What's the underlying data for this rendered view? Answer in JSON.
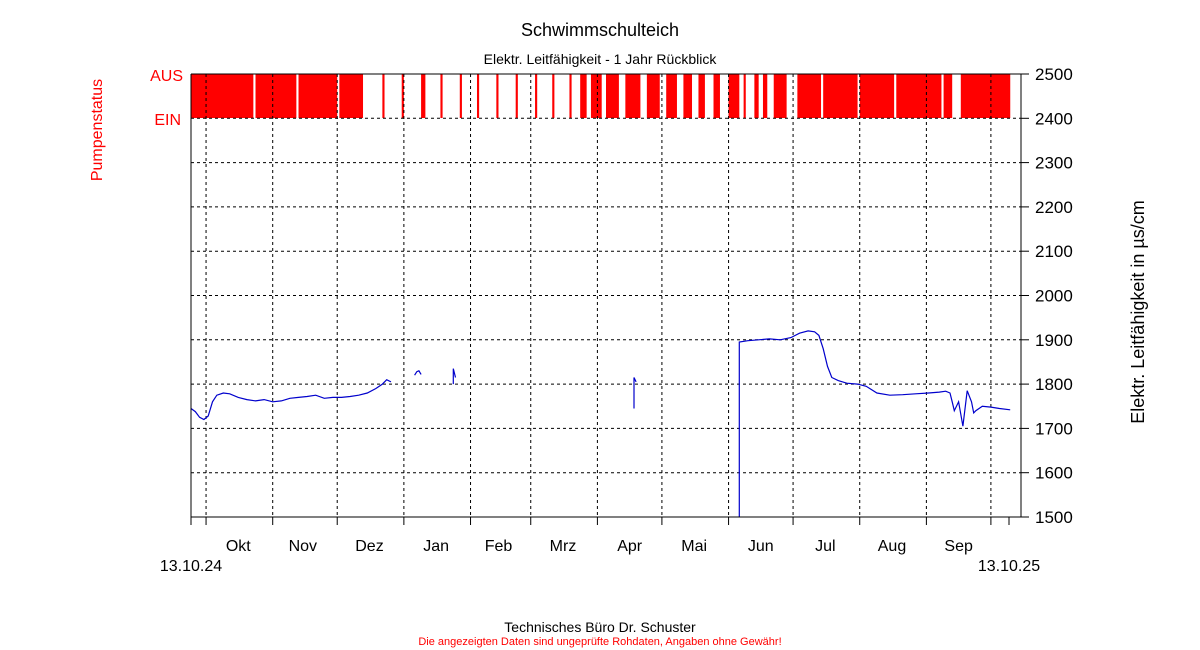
{
  "title": "Schwimmschulteich",
  "subtitle": "Elektr. Leitfähigkeit - 1 Jahr Rückblick",
  "footer": {
    "company": "Technisches Büro Dr. Schuster",
    "disclaimer": "Die angezeigten Daten sind ungeprüfte Rohdaten, Angaben ohne Gewähr!"
  },
  "colors": {
    "pump": "#ff0000",
    "series": "#0000cc",
    "grid": "#000000",
    "text": "#000000",
    "pump_label": "#ff0000"
  },
  "chart_data": {
    "type": "line",
    "ylabel_left": "Pumpenstatus",
    "ylabel_right": "Elektr. Leitfähigkeit in µs/cm",
    "pump_levels": [
      "AUS",
      "EIN"
    ],
    "ylim": [
      1500,
      2500
    ],
    "yticks": [
      1500,
      1600,
      1700,
      1800,
      1900,
      2000,
      2100,
      2200,
      2300,
      2400,
      2500
    ],
    "xlim": [
      "2024-09-24",
      "2025-10-15"
    ],
    "month_ticks": [
      "2024-10-01",
      "2024-11-01",
      "2024-12-01",
      "2025-01-01",
      "2025-02-01",
      "2025-03-01",
      "2025-04-01",
      "2025-05-01",
      "2025-06-01",
      "2025-07-01",
      "2025-08-01",
      "2025-09-01",
      "2025-10-01"
    ],
    "month_labels": [
      {
        "label": "Okt",
        "date": "2024-10-16"
      },
      {
        "label": "Nov",
        "date": "2024-11-15"
      },
      {
        "label": "Dez",
        "date": "2024-12-16"
      },
      {
        "label": "Jan",
        "date": "2025-01-16"
      },
      {
        "label": "Feb",
        "date": "2025-02-14"
      },
      {
        "label": "Mrz",
        "date": "2025-03-16"
      },
      {
        "label": "Apr",
        "date": "2025-04-16"
      },
      {
        "label": "Mai",
        "date": "2025-05-16"
      },
      {
        "label": "Jun",
        "date": "2025-06-16"
      },
      {
        "label": "Jul",
        "date": "2025-07-16"
      },
      {
        "label": "Aug",
        "date": "2025-08-16"
      },
      {
        "label": "Sep",
        "date": "2025-09-16"
      }
    ],
    "start_label": "13.10.24",
    "end_label": "13.10.25",
    "pump_on_periods": [
      [
        "2024-09-24",
        "2024-10-23"
      ],
      [
        "2024-10-24",
        "2024-11-12"
      ],
      [
        "2024-11-13",
        "2024-12-01"
      ],
      [
        "2024-12-02",
        "2024-12-13"
      ],
      [
        "2024-12-22",
        "2024-12-23"
      ],
      [
        "2024-12-31",
        "2025-01-01"
      ],
      [
        "2025-01-09",
        "2025-01-11"
      ],
      [
        "2025-01-18",
        "2025-01-19"
      ],
      [
        "2025-01-27",
        "2025-01-28"
      ],
      [
        "2025-02-04",
        "2025-02-05"
      ],
      [
        "2025-02-13",
        "2025-02-14"
      ],
      [
        "2025-02-22",
        "2025-02-23"
      ],
      [
        "2025-03-03",
        "2025-03-04"
      ],
      [
        "2025-03-11",
        "2025-03-12"
      ],
      [
        "2025-03-19",
        "2025-03-20"
      ],
      [
        "2025-03-24",
        "2025-03-27"
      ],
      [
        "2025-03-29",
        "2025-04-03"
      ],
      [
        "2025-04-05",
        "2025-04-11"
      ],
      [
        "2025-04-14",
        "2025-04-21"
      ],
      [
        "2025-04-24",
        "2025-04-30"
      ],
      [
        "2025-05-03",
        "2025-05-08"
      ],
      [
        "2025-05-11",
        "2025-05-15"
      ],
      [
        "2025-05-18",
        "2025-05-21"
      ],
      [
        "2025-05-25",
        "2025-05-28"
      ],
      [
        "2025-06-01",
        "2025-06-06"
      ],
      [
        "2025-06-08",
        "2025-06-09"
      ],
      [
        "2025-06-13",
        "2025-06-15"
      ],
      [
        "2025-06-17",
        "2025-06-19"
      ],
      [
        "2025-06-22",
        "2025-06-28"
      ],
      [
        "2025-07-03",
        "2025-07-14"
      ],
      [
        "2025-07-15",
        "2025-07-31"
      ],
      [
        "2025-08-01",
        "2025-08-17"
      ],
      [
        "2025-08-18",
        "2025-09-08"
      ],
      [
        "2025-09-09",
        "2025-09-13"
      ],
      [
        "2025-09-17",
        "2025-10-10"
      ]
    ],
    "series": [
      {
        "segments": [
          [
            [
              "2024-09-24",
              1745
            ],
            [
              "2024-09-26",
              1738
            ],
            [
              "2024-09-28",
              1725
            ],
            [
              "2024-09-30",
              1720
            ],
            [
              "2024-10-02",
              1728
            ],
            [
              "2024-10-04",
              1760
            ],
            [
              "2024-10-06",
              1775
            ],
            [
              "2024-10-09",
              1780
            ],
            [
              "2024-10-12",
              1778
            ],
            [
              "2024-10-16",
              1770
            ],
            [
              "2024-10-20",
              1765
            ],
            [
              "2024-10-24",
              1762
            ],
            [
              "2024-10-28",
              1765
            ],
            [
              "2024-11-01",
              1760
            ],
            [
              "2024-11-05",
              1762
            ],
            [
              "2024-11-09",
              1768
            ],
            [
              "2024-11-13",
              1770
            ],
            [
              "2024-11-17",
              1772
            ],
            [
              "2024-11-21",
              1775
            ],
            [
              "2024-11-25",
              1768
            ],
            [
              "2024-11-29",
              1770
            ],
            [
              "2024-12-03",
              1770
            ],
            [
              "2024-12-07",
              1772
            ],
            [
              "2024-12-11",
              1775
            ],
            [
              "2024-12-15",
              1780
            ],
            [
              "2024-12-19",
              1790
            ],
            [
              "2024-12-22",
              1800
            ],
            [
              "2024-12-24",
              1810
            ],
            [
              "2024-12-26",
              1805
            ]
          ],
          [
            [
              "2025-01-06",
              1820
            ],
            [
              "2025-01-07",
              1828
            ],
            [
              "2025-01-08",
              1830
            ],
            [
              "2025-01-09",
              1822
            ]
          ],
          [
            [
              "2025-01-24",
              1800
            ],
            [
              "2025-01-24",
              1835
            ],
            [
              "2025-01-25",
              1815
            ]
          ],
          [
            [
              "2025-04-18",
              1745
            ],
            [
              "2025-04-18",
              1815
            ],
            [
              "2025-04-19",
              1805
            ]
          ],
          [
            [
              "2025-06-06",
              1500
            ],
            [
              "2025-06-06",
              1895
            ],
            [
              "2025-06-10",
              1898
            ],
            [
              "2025-06-15",
              1900
            ],
            [
              "2025-06-20",
              1902
            ],
            [
              "2025-06-25",
              1900
            ],
            [
              "2025-06-30",
              1905
            ],
            [
              "2025-07-04",
              1915
            ],
            [
              "2025-07-08",
              1920
            ],
            [
              "2025-07-11",
              1918
            ],
            [
              "2025-07-13",
              1910
            ],
            [
              "2025-07-15",
              1880
            ],
            [
              "2025-07-17",
              1840
            ],
            [
              "2025-07-19",
              1815
            ],
            [
              "2025-07-22",
              1808
            ],
            [
              "2025-07-26",
              1802
            ],
            [
              "2025-07-31",
              1800
            ],
            [
              "2025-08-04",
              1795
            ],
            [
              "2025-08-09",
              1780
            ],
            [
              "2025-08-15",
              1775
            ],
            [
              "2025-08-21",
              1776
            ],
            [
              "2025-08-27",
              1778
            ],
            [
              "2025-09-02",
              1780
            ],
            [
              "2025-09-07",
              1782
            ],
            [
              "2025-09-10",
              1784
            ],
            [
              "2025-09-12",
              1780
            ],
            [
              "2025-09-13",
              1760
            ],
            [
              "2025-09-14",
              1740
            ],
            [
              "2025-09-16",
              1760
            ],
            [
              "2025-09-18",
              1705
            ],
            [
              "2025-09-20",
              1785
            ],
            [
              "2025-09-22",
              1760
            ],
            [
              "2025-09-23",
              1735
            ],
            [
              "2025-09-24",
              1740
            ],
            [
              "2025-09-27",
              1750
            ],
            [
              "2025-10-01",
              1748
            ],
            [
              "2025-10-05",
              1745
            ],
            [
              "2025-10-10",
              1742
            ]
          ]
        ]
      }
    ]
  }
}
